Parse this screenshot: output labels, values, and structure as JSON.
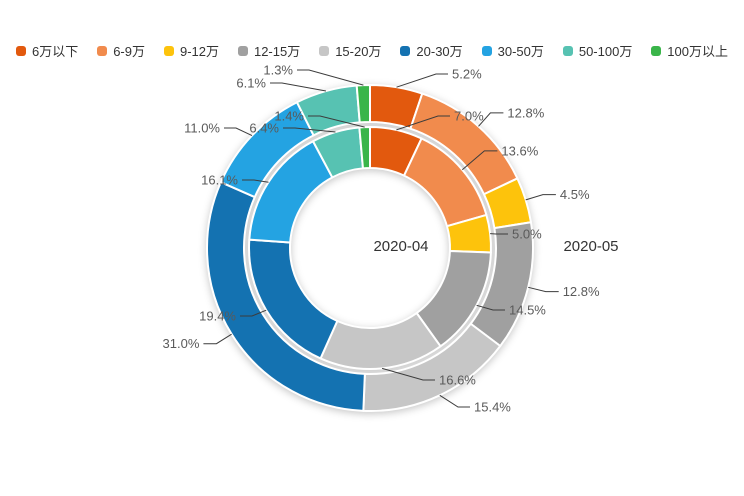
{
  "chart_data": {
    "type": "pie",
    "subtype": "nested-donut",
    "title": "",
    "categories": [
      "6万以下",
      "6-9万",
      "9-12万",
      "12-15万",
      "15-20万",
      "20-30万",
      "30-50万",
      "50-100万",
      "100万以上"
    ],
    "colors": [
      "#e2590e",
      "#f18b4d",
      "#fdc30c",
      "#a0a0a0",
      "#c6c6c6",
      "#1472b1",
      "#24a3e2",
      "#57c2b2",
      "#3ab54a"
    ],
    "series": [
      {
        "name": "2020-04",
        "ring": "inner",
        "values": [
          7.0,
          13.6,
          5.0,
          14.5,
          16.6,
          19.4,
          16.1,
          6.4,
          1.4
        ]
      },
      {
        "name": "2020-05",
        "ring": "outer",
        "values": [
          5.2,
          12.8,
          4.5,
          12.8,
          15.4,
          31.0,
          11.0,
          6.1,
          1.3
        ]
      }
    ],
    "value_format": "percent",
    "start_angle_deg": 0,
    "direction": "clockwise",
    "legend_position": "top",
    "label_color": "#5a5a5a",
    "leader_line_color": "#3c3c3c"
  }
}
